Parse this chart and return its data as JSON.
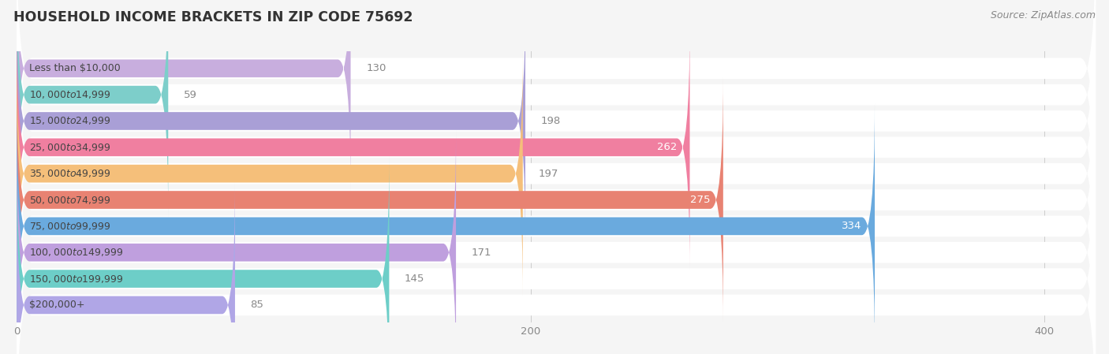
{
  "title": "Household Income Brackets in Zip Code 75692",
  "title_display": "HOUSEHOLD INCOME BRACKETS IN ZIP CODE 75692",
  "source": "Source: ZipAtlas.com",
  "categories": [
    "Less than $10,000",
    "$10,000 to $14,999",
    "$15,000 to $24,999",
    "$25,000 to $34,999",
    "$35,000 to $49,999",
    "$50,000 to $74,999",
    "$75,000 to $99,999",
    "$100,000 to $149,999",
    "$150,000 to $199,999",
    "$200,000+"
  ],
  "values": [
    130,
    59,
    198,
    262,
    197,
    275,
    334,
    171,
    145,
    85
  ],
  "colors": [
    "#c8aede",
    "#7dceca",
    "#a99fd6",
    "#f07fa0",
    "#f5bf7a",
    "#e88272",
    "#6aaade",
    "#bf9fde",
    "#6dcec8",
    "#b0a6e6"
  ],
  "label_inside_color": "#ffffff",
  "label_outside_color": "#888888",
  "inside_threshold": 230,
  "xlim_max": 420,
  "xticks": [
    0,
    200,
    400
  ],
  "row_bg_color": "#ffffff",
  "fig_bg_color": "#f5f5f5",
  "title_fontsize": 12.5,
  "source_fontsize": 9,
  "cat_fontsize": 9,
  "val_fontsize": 9.5,
  "tick_fontsize": 9.5
}
